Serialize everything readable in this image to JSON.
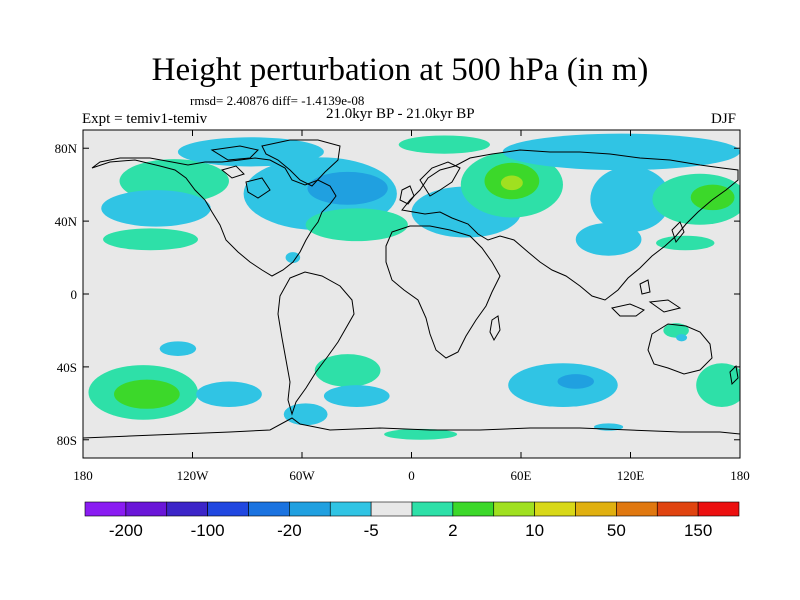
{
  "title": "Height perturbation at 500 hPa (in m)",
  "subtitle_stats": "rmsd= 2.40876 diff= -1.4139e-08",
  "experiment": "Expt = temiv1-temiv",
  "period": "21.0kyr BP - 21.0kyr BP",
  "season": "DJF",
  "map": {
    "projection": "cylindrical-equidistant",
    "lon_range": [
      -180,
      180
    ],
    "lat_range": [
      -90,
      90
    ],
    "coastlines": true,
    "background_color": "#e8e8e8"
  },
  "axes": {
    "y_ticks": [
      {
        "lat": 80,
        "label": "80N"
      },
      {
        "lat": 40,
        "label": "40N"
      },
      {
        "lat": 0,
        "label": "0"
      },
      {
        "lat": -40,
        "label": "40S"
      },
      {
        "lat": -80,
        "label": "80S"
      }
    ],
    "x_ticks": [
      {
        "lon": -180,
        "label": "180"
      },
      {
        "lon": -120,
        "label": "120W"
      },
      {
        "lon": -60,
        "label": "60W"
      },
      {
        "lon": 0,
        "label": "0"
      },
      {
        "lon": 60,
        "label": "60E"
      },
      {
        "lon": 120,
        "label": "120E"
      },
      {
        "lon": 180,
        "label": "180"
      }
    ]
  },
  "colorbar": {
    "colors": [
      "#8a1cf2",
      "#6a16d8",
      "#3c25c8",
      "#2047e0",
      "#1b73e0",
      "#20a0e0",
      "#30c4e4",
      "#e8e8e8",
      "#2ee0a8",
      "#3cd82a",
      "#a0e020",
      "#d8d818",
      "#e0b010",
      "#e07810",
      "#e04410",
      "#ec1010"
    ],
    "labels": [
      {
        "index": 1,
        "text": "-200"
      },
      {
        "index": 3,
        "text": "-100"
      },
      {
        "index": 5,
        "text": "-20"
      },
      {
        "index": 7,
        "text": "-5"
      },
      {
        "index": 9,
        "text": "2"
      },
      {
        "index": 11,
        "text": "10"
      },
      {
        "index": 13,
        "text": "50"
      },
      {
        "index": 15,
        "text": "150"
      }
    ]
  },
  "anomalies": [
    {
      "sign": "+",
      "level": 1,
      "lon": -130,
      "lat": 62,
      "rx": 30,
      "ry": 12
    },
    {
      "sign": "-",
      "level": 1,
      "lon": -140,
      "lat": 47,
      "rx": 30,
      "ry": 10
    },
    {
      "sign": "+",
      "level": 1,
      "lon": -143,
      "lat": 30,
      "rx": 26,
      "ry": 6
    },
    {
      "sign": "-",
      "level": 1,
      "lon": -50,
      "lat": 55,
      "rx": 42,
      "ry": 20
    },
    {
      "sign": "-",
      "level": 2,
      "lon": -35,
      "lat": 58,
      "rx": 22,
      "ry": 9
    },
    {
      "sign": "-",
      "level": 1,
      "lon": -88,
      "lat": 78,
      "rx": 40,
      "ry": 8
    },
    {
      "sign": "+",
      "level": 1,
      "lon": -30,
      "lat": 38,
      "rx": 28,
      "ry": 9
    },
    {
      "sign": "-",
      "level": 1,
      "lon": 30,
      "lat": 45,
      "rx": 30,
      "ry": 14
    },
    {
      "sign": "+",
      "level": 1,
      "lon": 55,
      "lat": 60,
      "rx": 28,
      "ry": 18
    },
    {
      "sign": "+",
      "level": 2,
      "lon": 55,
      "lat": 62,
      "rx": 15,
      "ry": 10
    },
    {
      "sign": "+",
      "level": 3,
      "lon": 55,
      "lat": 61,
      "rx": 6,
      "ry": 4
    },
    {
      "sign": "+",
      "level": 1,
      "lon": 18,
      "lat": 82,
      "rx": 25,
      "ry": 5
    },
    {
      "sign": "-",
      "level": 1,
      "lon": 115,
      "lat": 78,
      "rx": 65,
      "ry": 10
    },
    {
      "sign": "-",
      "level": 1,
      "lon": 120,
      "lat": 52,
      "rx": 22,
      "ry": 18
    },
    {
      "sign": "-",
      "level": 1,
      "lon": 108,
      "lat": 30,
      "rx": 18,
      "ry": 9
    },
    {
      "sign": "+",
      "level": 1,
      "lon": 158,
      "lat": 52,
      "rx": 26,
      "ry": 14
    },
    {
      "sign": "+",
      "level": 2,
      "lon": 165,
      "lat": 53,
      "rx": 12,
      "ry": 7
    },
    {
      "sign": "+",
      "level": 1,
      "lon": 150,
      "lat": 28,
      "rx": 16,
      "ry": 4
    },
    {
      "sign": "-",
      "level": 1,
      "lon": -65,
      "lat": 20,
      "rx": 4,
      "ry": 3
    },
    {
      "sign": "-",
      "level": 1,
      "lon": -128,
      "lat": -30,
      "rx": 10,
      "ry": 4
    },
    {
      "sign": "+",
      "level": 1,
      "lon": -147,
      "lat": -54,
      "rx": 30,
      "ry": 15
    },
    {
      "sign": "+",
      "level": 2,
      "lon": -145,
      "lat": -55,
      "rx": 18,
      "ry": 8
    },
    {
      "sign": "-",
      "level": 1,
      "lon": -100,
      "lat": -55,
      "rx": 18,
      "ry": 7
    },
    {
      "sign": "+",
      "level": 1,
      "lon": -35,
      "lat": -42,
      "rx": 18,
      "ry": 9
    },
    {
      "sign": "-",
      "level": 1,
      "lon": -30,
      "lat": -56,
      "rx": 18,
      "ry": 6
    },
    {
      "sign": "-",
      "level": 1,
      "lon": -58,
      "lat": -66,
      "rx": 12,
      "ry": 6
    },
    {
      "sign": "-",
      "level": 1,
      "lon": 83,
      "lat": -50,
      "rx": 30,
      "ry": 12
    },
    {
      "sign": "-",
      "level": 2,
      "lon": 90,
      "lat": -48,
      "rx": 10,
      "ry": 4
    },
    {
      "sign": "+",
      "level": 1,
      "lon": 170,
      "lat": -50,
      "rx": 14,
      "ry": 12
    },
    {
      "sign": "+",
      "level": 1,
      "lon": 5,
      "lat": -77,
      "rx": 20,
      "ry": 3
    },
    {
      "sign": "-",
      "level": 1,
      "lon": 108,
      "lat": -73,
      "rx": 8,
      "ry": 2
    },
    {
      "sign": "+",
      "level": 1,
      "lon": 145,
      "lat": -20,
      "rx": 7,
      "ry": 4
    },
    {
      "sign": "-",
      "level": 1,
      "lon": 148,
      "lat": -24,
      "rx": 3,
      "ry": 2
    }
  ]
}
